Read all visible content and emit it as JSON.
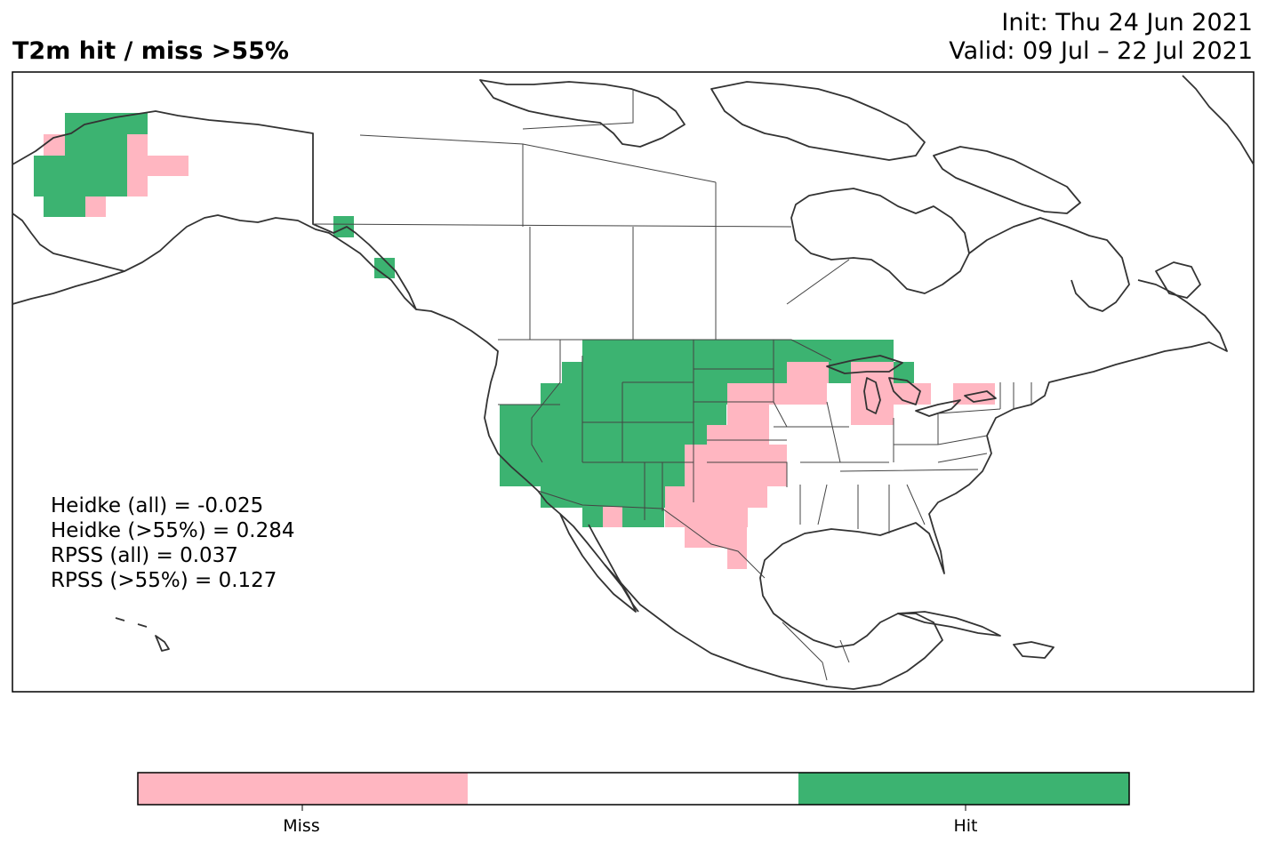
{
  "header": {
    "title": "T2m hit / miss  >55%",
    "init": "Init: Thu 24 Jun 2021",
    "valid": "Valid: 09 Jul – 22 Jul 2021"
  },
  "stats": [
    "Heidke (all) = -0.025",
    "Heidke (>55%) = 0.284",
    "RPSS (all) = 0.037",
    "RPSS (>55%) = 0.127"
  ],
  "colorbar": {
    "labels": [
      "Miss",
      "Hit"
    ],
    "colors": {
      "miss": "#ffb6c1",
      "neutral": "#ffffff",
      "hit": "#3cb371"
    }
  },
  "colors": {
    "hit": "#3cb371",
    "miss": "#ffb6c1",
    "land_outline": "#333333",
    "state_outline": "#444444"
  }
}
